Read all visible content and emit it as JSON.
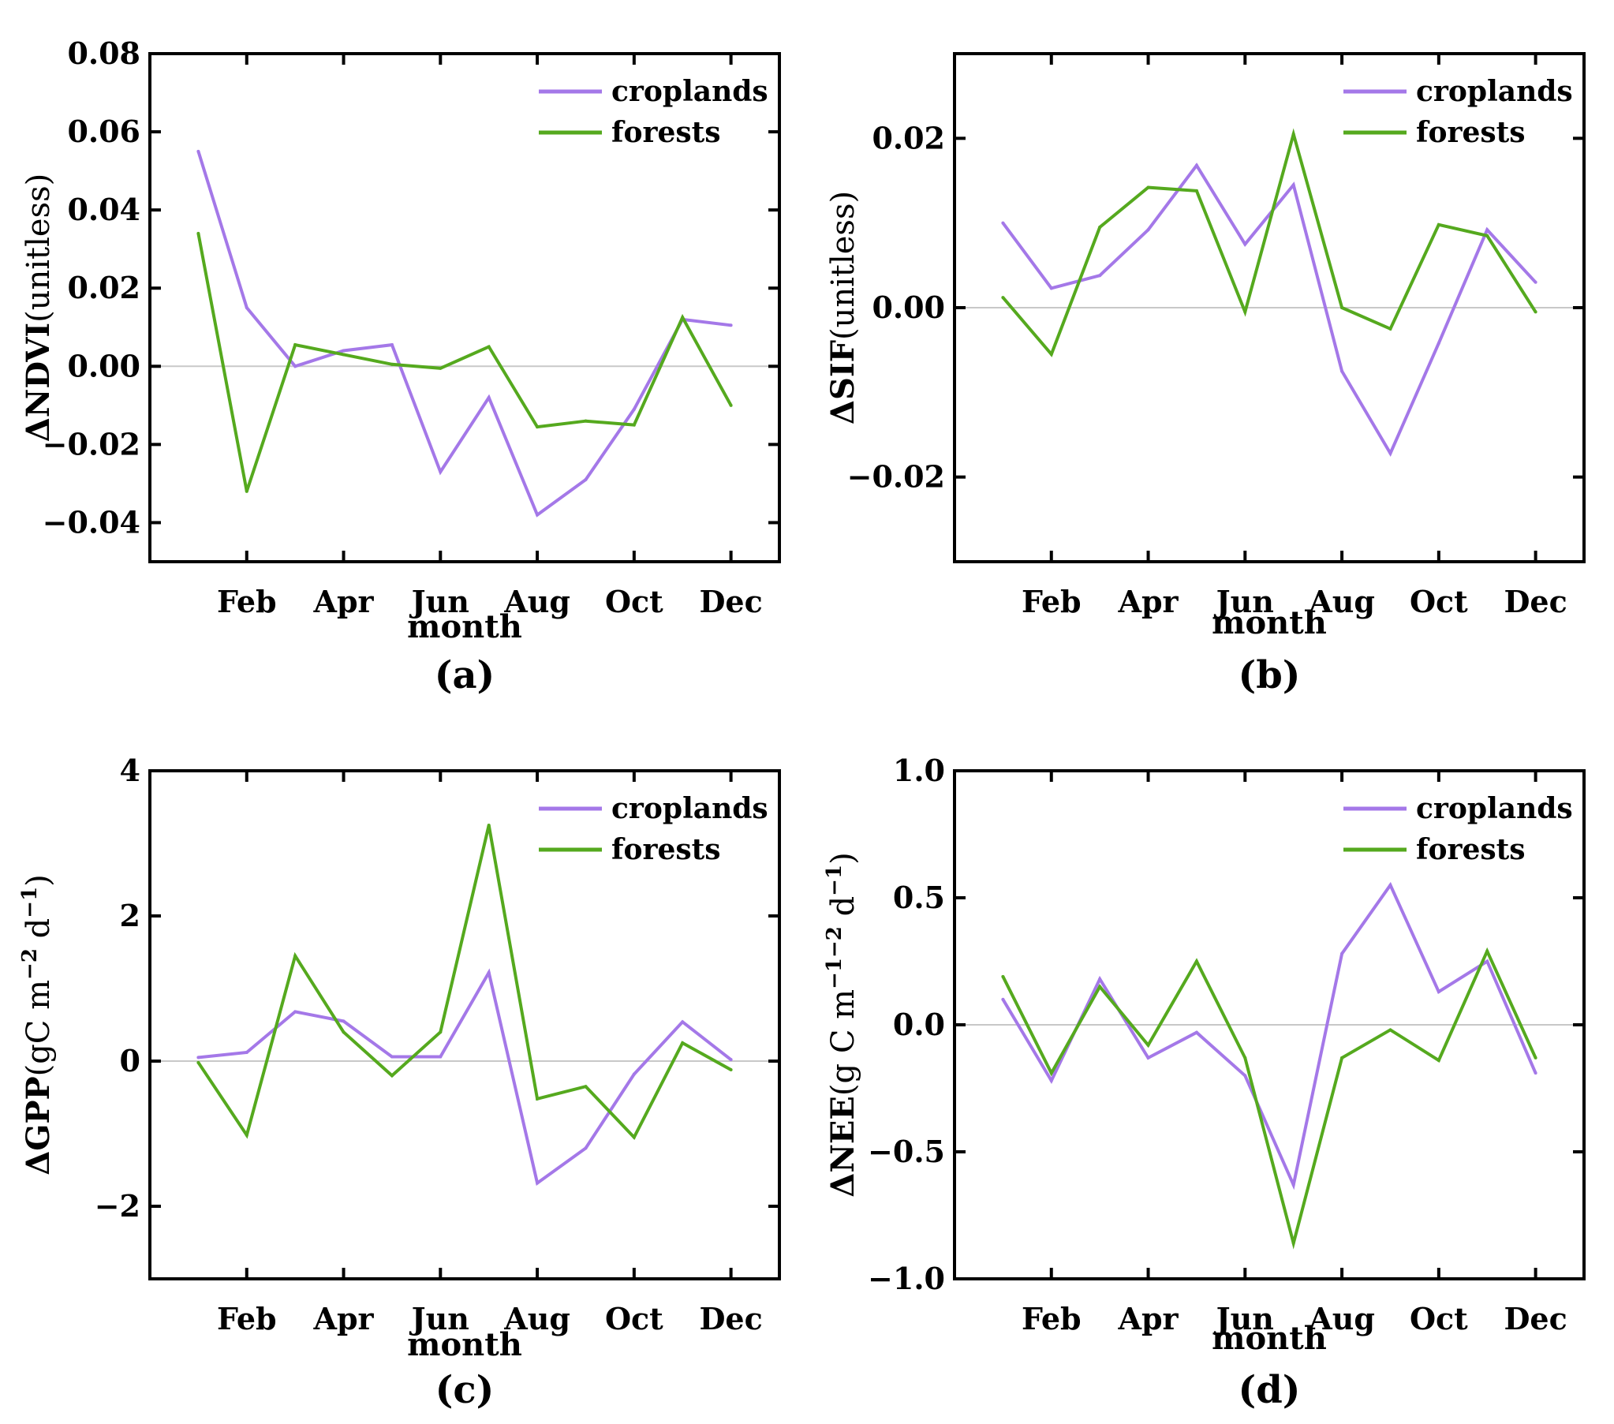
{
  "colors": {
    "croplands": "#a478e8",
    "forests": "#55a91e",
    "zero_line": "#c8c8c8",
    "axis": "#000000"
  },
  "chart_data": [
    {
      "id": "a",
      "type": "line",
      "panel_label": "(a)",
      "xlabel": "month",
      "ylabel": {
        "delta": "Δ",
        "main": "NDVI",
        "rest": "(unitless)"
      },
      "x": [
        1,
        2,
        3,
        4,
        5,
        6,
        7,
        8,
        9,
        10,
        11,
        12
      ],
      "xlim": [
        0,
        13
      ],
      "xticks": [
        {
          "value": 2,
          "label": "Feb"
        },
        {
          "value": 4,
          "label": "Apr"
        },
        {
          "value": 6,
          "label": "Jun"
        },
        {
          "value": 8,
          "label": "Aug"
        },
        {
          "value": 10,
          "label": "Oct"
        },
        {
          "value": 12,
          "label": "Dec"
        }
      ],
      "ylim": [
        -0.05,
        0.08
      ],
      "yticks": [
        {
          "value": 0.08,
          "label": "0.08"
        },
        {
          "value": 0.06,
          "label": "0.06"
        },
        {
          "value": 0.04,
          "label": "0.04"
        },
        {
          "value": 0.02,
          "label": "0.02"
        },
        {
          "value": 0.0,
          "label": "0.00"
        },
        {
          "value": -0.02,
          "label": "−0.02"
        },
        {
          "value": -0.04,
          "label": "−0.04"
        }
      ],
      "legend": {
        "position": "top-right"
      },
      "series": [
        {
          "name": "croplands",
          "values": [
            0.055,
            0.015,
            0.0,
            0.004,
            0.0055,
            -0.027,
            -0.008,
            -0.038,
            -0.029,
            -0.011,
            0.012,
            0.0105
          ]
        },
        {
          "name": "forests",
          "values": [
            0.034,
            -0.032,
            0.0055,
            0.003,
            0.0005,
            -0.0005,
            0.005,
            -0.0155,
            -0.014,
            -0.015,
            0.0125,
            -0.01
          ]
        }
      ]
    },
    {
      "id": "b",
      "type": "line",
      "panel_label": "(b)",
      "xlabel": "month",
      "ylabel": {
        "delta": "Δ",
        "main": "SIF",
        "rest": "(unitless)"
      },
      "x": [
        1,
        2,
        3,
        4,
        5,
        6,
        7,
        8,
        9,
        10,
        11,
        12
      ],
      "xlim": [
        0,
        13
      ],
      "xticks": [
        {
          "value": 2,
          "label": "Feb"
        },
        {
          "value": 4,
          "label": "Apr"
        },
        {
          "value": 6,
          "label": "Jun"
        },
        {
          "value": 8,
          "label": "Aug"
        },
        {
          "value": 10,
          "label": "Oct"
        },
        {
          "value": 12,
          "label": "Dec"
        }
      ],
      "ylim": [
        -0.03,
        0.03
      ],
      "yticks": [
        {
          "value": 0.02,
          "label": "0.02"
        },
        {
          "value": 0.0,
          "label": "0.00"
        },
        {
          "value": -0.02,
          "label": "−0.02"
        }
      ],
      "legend": {
        "position": "top-right"
      },
      "series": [
        {
          "name": "croplands",
          "values": [
            0.01,
            0.0023,
            0.0038,
            0.0092,
            0.0168,
            0.0075,
            0.0145,
            -0.0075,
            -0.0172,
            -0.0042,
            0.0092,
            0.003
          ]
        },
        {
          "name": "forests",
          "values": [
            0.0012,
            -0.0055,
            0.0095,
            0.0142,
            0.0138,
            -0.0005,
            0.0205,
            0.0,
            -0.0025,
            0.0098,
            0.0085,
            -0.0005
          ]
        }
      ]
    },
    {
      "id": "c",
      "type": "line",
      "panel_label": "(c)",
      "xlabel": "month",
      "ylabel": {
        "delta": "Δ",
        "main": "GPP",
        "rest": "(gC m",
        "sup1": "−2",
        "mid": " d",
        "sup2": "−1",
        "end": ")"
      },
      "x": [
        1,
        2,
        3,
        4,
        5,
        6,
        7,
        8,
        9,
        10,
        11,
        12
      ],
      "xlim": [
        0,
        13
      ],
      "xticks": [
        {
          "value": 2,
          "label": "Feb"
        },
        {
          "value": 4,
          "label": "Apr"
        },
        {
          "value": 6,
          "label": "Jun"
        },
        {
          "value": 8,
          "label": "Aug"
        },
        {
          "value": 10,
          "label": "Oct"
        },
        {
          "value": 12,
          "label": "Dec"
        }
      ],
      "ylim": [
        -3,
        4
      ],
      "yticks": [
        {
          "value": 4,
          "label": "4"
        },
        {
          "value": 2,
          "label": "2"
        },
        {
          "value": 0,
          "label": "0"
        },
        {
          "value": -2,
          "label": "−2"
        }
      ],
      "legend": {
        "position": "top-right"
      },
      "series": [
        {
          "name": "croplands",
          "values": [
            0.05,
            0.12,
            0.68,
            0.55,
            0.06,
            0.06,
            1.22,
            -1.68,
            -1.2,
            -0.18,
            0.54,
            0.02
          ]
        },
        {
          "name": "forests",
          "values": [
            -0.02,
            -1.02,
            1.45,
            0.4,
            -0.2,
            0.4,
            3.25,
            -0.52,
            -0.35,
            -1.05,
            0.25,
            -0.12
          ]
        }
      ]
    },
    {
      "id": "d",
      "type": "line",
      "panel_label": "(d)",
      "xlabel": "month",
      "ylabel": {
        "delta": "Δ",
        "main": "NEE",
        "rest": "(g C m",
        "sup1": "−1−2",
        "mid": " d",
        "sup2": "−1",
        "end": ")"
      },
      "x": [
        1,
        2,
        3,
        4,
        5,
        6,
        7,
        8,
        9,
        10,
        11,
        12
      ],
      "xlim": [
        0,
        13
      ],
      "xticks": [
        {
          "value": 2,
          "label": "Feb"
        },
        {
          "value": 4,
          "label": "Apr"
        },
        {
          "value": 6,
          "label": "Jun"
        },
        {
          "value": 8,
          "label": "Aug"
        },
        {
          "value": 10,
          "label": "Oct"
        },
        {
          "value": 12,
          "label": "Dec"
        }
      ],
      "ylim": [
        -1.0,
        1.0
      ],
      "yticks": [
        {
          "value": 1.0,
          "label": "1.0"
        },
        {
          "value": 0.5,
          "label": "0.5"
        },
        {
          "value": 0.0,
          "label": "0.0"
        },
        {
          "value": -0.5,
          "label": "−0.5"
        },
        {
          "value": -1.0,
          "label": "−1.0"
        }
      ],
      "legend": {
        "position": "top-right"
      },
      "series": [
        {
          "name": "croplands",
          "values": [
            0.1,
            -0.22,
            0.18,
            -0.13,
            -0.03,
            -0.2,
            -0.63,
            0.28,
            0.55,
            0.13,
            0.25,
            -0.19
          ]
        },
        {
          "name": "forests",
          "values": [
            0.19,
            -0.19,
            0.15,
            -0.08,
            0.25,
            -0.13,
            -0.86,
            -0.13,
            -0.02,
            -0.14,
            0.29,
            -0.13
          ]
        }
      ]
    }
  ]
}
